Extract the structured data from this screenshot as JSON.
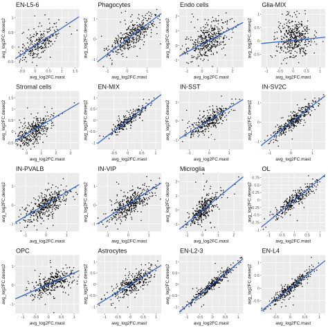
{
  "chart_data": {
    "type": "scatter",
    "xlabel": "avg_log2FC.mast",
    "ylabel": "avg_log2FC.deseq2",
    "colors": {
      "panel_bg": "#ebebeb",
      "grid": "#ffffff",
      "points": "#000000",
      "fit": "#3366cc"
    },
    "grid": true,
    "layout_grid": {
      "rows": 4,
      "cols": 4
    },
    "panels": [
      {
        "title": "EN-L5-6",
        "xticks": [
          -0.5,
          0.0,
          0.5,
          1.0,
          1.5
        ],
        "yticks": [
          -0.5,
          0.0,
          0.5,
          1.0
        ],
        "xlim": [
          -0.75,
          1.65
        ],
        "ylim": [
          -0.7,
          1.3
        ],
        "fit": {
          "slope": 0.6,
          "intercept": 0.05
        },
        "cloud": {
          "cx": 0.15,
          "cy": 0.15,
          "sx": 0.35,
          "sy": 0.22,
          "slope": 0.55,
          "n": 260
        }
      },
      {
        "title": "Phagocytes",
        "xticks": [
          -1,
          0,
          1
        ],
        "yticks": [
          -1,
          0,
          1
        ],
        "xlim": [
          -1.5,
          1.7
        ],
        "ylim": [
          -1.4,
          1.5
        ],
        "fit": {
          "slope": 0.75,
          "intercept": 0.0
        },
        "cloud": {
          "cx": 0.2,
          "cy": 0.15,
          "sx": 0.6,
          "sy": 0.3,
          "slope": 0.7,
          "n": 420
        }
      },
      {
        "title": "Endo cells",
        "xticks": [
          -1,
          0,
          1,
          2
        ],
        "yticks": [
          -1,
          0,
          1,
          2
        ],
        "xlim": [
          -1.5,
          2.7
        ],
        "ylim": [
          -1.5,
          2.5
        ],
        "fit": {
          "slope": 0.55,
          "intercept": 0.1
        },
        "cloud": {
          "cx": 0.4,
          "cy": 0.4,
          "sx": 0.6,
          "sy": 0.55,
          "slope": 0.6,
          "n": 420
        }
      },
      {
        "title": "Glia-MIX",
        "xticks": [
          -1.0,
          -0.5,
          0.0,
          0.5,
          1.0
        ],
        "yticks": [
          -0.5,
          0.0,
          0.5,
          1.0
        ],
        "xlim": [
          -1.2,
          1.2
        ],
        "ylim": [
          -1.0,
          1.2
        ],
        "fit": {
          "slope": 0.1,
          "intercept": 0.02
        },
        "cloud": {
          "cx": 0.05,
          "cy": 0.1,
          "sx": 0.3,
          "sy": 0.35,
          "slope": 0.05,
          "n": 420
        }
      },
      {
        "title": "Stromal cells",
        "xticks": [
          0,
          1,
          2,
          3
        ],
        "yticks": [
          -0.5,
          0.0,
          0.5,
          1.0,
          1.5
        ],
        "xlim": [
          -0.8,
          3.6
        ],
        "ylim": [
          -0.8,
          1.8
        ],
        "fit": {
          "slope": 0.38,
          "intercept": -0.1
        },
        "cloud": {
          "cx": 0.4,
          "cy": 0.0,
          "sx": 0.6,
          "sy": 0.25,
          "slope": 0.35,
          "n": 380
        }
      },
      {
        "title": "EN-MIX",
        "xticks": [
          -0.5,
          0.0,
          0.5,
          1.0
        ],
        "yticks": [
          -1.0,
          -0.5,
          0.0,
          0.5,
          1.0
        ],
        "xlim": [
          -1.1,
          1.2
        ],
        "ylim": [
          -1.3,
          1.3
        ],
        "fit": {
          "slope": 0.95,
          "intercept": 0.0
        },
        "cloud": {
          "cx": 0.0,
          "cy": 0.0,
          "sx": 0.32,
          "sy": 0.12,
          "slope": 0.9,
          "n": 240
        }
      },
      {
        "title": "IN-SST",
        "xticks": [
          -1,
          0,
          1
        ],
        "yticks": [
          -1,
          0,
          1
        ],
        "xlim": [
          -1.5,
          1.7
        ],
        "ylim": [
          -1.5,
          1.6
        ],
        "fit": {
          "slope": 0.65,
          "intercept": 0.05
        },
        "cloud": {
          "cx": 0.0,
          "cy": 0.0,
          "sx": 0.5,
          "sy": 0.25,
          "slope": 0.6,
          "n": 340
        }
      },
      {
        "title": "IN-SV2C",
        "xticks": [
          -1,
          0,
          1
        ],
        "yticks": [
          -1,
          0,
          1
        ],
        "xlim": [
          -1.4,
          1.6
        ],
        "ylim": [
          -1.4,
          1.6
        ],
        "fit": {
          "slope": 0.85,
          "intercept": 0.0
        },
        "cloud": {
          "cx": 0.1,
          "cy": 0.05,
          "sx": 0.5,
          "sy": 0.18,
          "slope": 0.85,
          "n": 360
        }
      },
      {
        "title": "IN-PVALB",
        "xticks": [
          -1,
          0,
          1
        ],
        "yticks": [
          -1,
          0,
          1
        ],
        "xlim": [
          -1.5,
          1.6
        ],
        "ylim": [
          -1.4,
          1.7
        ],
        "fit": {
          "slope": 0.65,
          "intercept": 0.05
        },
        "cloud": {
          "cx": 0.0,
          "cy": 0.0,
          "sx": 0.55,
          "sy": 0.3,
          "slope": 0.6,
          "n": 420
        }
      },
      {
        "title": "IN-VIP",
        "xticks": [
          -1,
          0,
          1
        ],
        "yticks": [
          -1,
          0,
          1
        ],
        "xlim": [
          -1.5,
          1.6
        ],
        "ylim": [
          -1.4,
          1.7
        ],
        "fit": {
          "slope": 0.7,
          "intercept": 0.05
        },
        "cloud": {
          "cx": 0.1,
          "cy": 0.05,
          "sx": 0.5,
          "sy": 0.3,
          "slope": 0.65,
          "n": 420
        }
      },
      {
        "title": "Microglia",
        "xticks": [
          -1,
          0,
          1,
          2
        ],
        "yticks": [
          -1,
          0,
          1,
          2
        ],
        "xlim": [
          -1.5,
          2.6
        ],
        "ylim": [
          -1.5,
          2.6
        ],
        "fit": {
          "slope": 0.9,
          "intercept": 0.0
        },
        "cloud": {
          "cx": 0.0,
          "cy": 0.0,
          "sx": 0.45,
          "sy": 0.35,
          "slope": 0.9,
          "n": 360
        }
      },
      {
        "title": "OL",
        "xticks": [
          -1.0,
          -0.5,
          0.0,
          0.5,
          1.0
        ],
        "yticks": [
          -1.0,
          -0.75,
          -0.5,
          -0.25,
          0.0,
          0.25,
          0.5,
          0.75
        ],
        "xlim": [
          -1.3,
          1.2
        ],
        "ylim": [
          -1.05,
          0.9
        ],
        "fit": {
          "slope": 0.7,
          "intercept": 0.0
        },
        "cloud": {
          "cx": 0.0,
          "cy": 0.0,
          "sx": 0.4,
          "sy": 0.12,
          "slope": 0.65,
          "n": 300
        }
      },
      {
        "title": "OPC",
        "xticks": [
          -1.0,
          -0.5,
          0.0,
          0.5,
          1.0
        ],
        "yticks": [
          -1,
          0,
          1
        ],
        "xlim": [
          -1.3,
          1.2
        ],
        "ylim": [
          -1.5,
          1.6
        ],
        "fit": {
          "slope": 0.6,
          "intercept": 0.05
        },
        "cloud": {
          "cx": 0.1,
          "cy": 0.1,
          "sx": 0.4,
          "sy": 0.25,
          "slope": 0.55,
          "n": 360
        }
      },
      {
        "title": "Astrocytes",
        "xticks": [
          -1.0,
          -0.5,
          0.0,
          0.5,
          1.0
        ],
        "yticks": [
          -1.0,
          -0.5,
          0.0,
          0.5,
          1.0
        ],
        "xlim": [
          -1.3,
          1.2
        ],
        "ylim": [
          -1.3,
          1.3
        ],
        "fit": {
          "slope": 0.7,
          "intercept": 0.0
        },
        "cloud": {
          "cx": 0.1,
          "cy": 0.05,
          "sx": 0.4,
          "sy": 0.2,
          "slope": 0.65,
          "n": 360
        }
      },
      {
        "title": "EN-L2-3",
        "xticks": [
          -1.0,
          -0.5,
          0.0,
          0.5,
          1.0
        ],
        "yticks": [
          -1.0,
          -0.5,
          0.0,
          0.5,
          1.0
        ],
        "xlim": [
          -1.3,
          1.2
        ],
        "ylim": [
          -1.3,
          1.3
        ],
        "fit": {
          "slope": 0.95,
          "intercept": 0.0
        },
        "cloud": {
          "cx": 0.0,
          "cy": 0.0,
          "sx": 0.42,
          "sy": 0.1,
          "slope": 0.95,
          "n": 340
        }
      },
      {
        "title": "EN-L4",
        "xticks": [
          -0.5,
          0.0,
          0.5,
          1.0
        ],
        "yticks": [
          -0.5,
          0.0,
          0.5,
          1.0
        ],
        "xlim": [
          -1.0,
          1.2
        ],
        "ylim": [
          -1.0,
          1.3
        ],
        "fit": {
          "slope": 0.9,
          "intercept": 0.0
        },
        "cloud": {
          "cx": 0.0,
          "cy": 0.0,
          "sx": 0.35,
          "sy": 0.1,
          "slope": 0.9,
          "n": 320
        }
      }
    ]
  }
}
